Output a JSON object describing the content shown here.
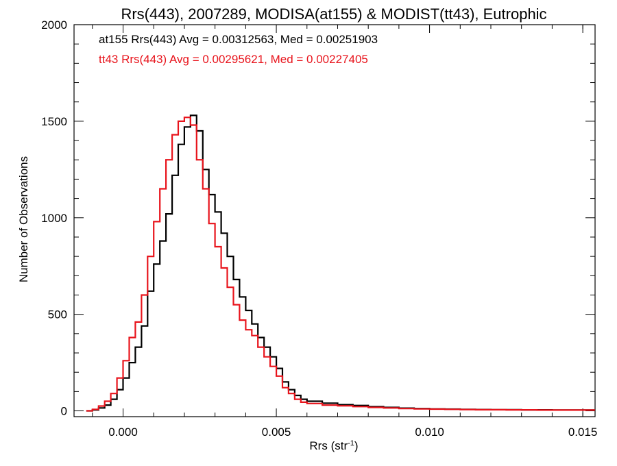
{
  "chart_data": {
    "type": "line",
    "title": "Rrs(443), 2007289, MODISA(at155) & MODIST(tt43), Eutrophic",
    "xlabel_main": "Rrs (str",
    "xlabel_sup": "-1",
    "xlabel_close": ")",
    "ylabel": "Number of Observations",
    "xlim": [
      -0.0016,
      0.0154
    ],
    "ylim": [
      -30,
      2000
    ],
    "x_ticks": [
      {
        "value": 0.0,
        "label": "0.000"
      },
      {
        "value": 0.005,
        "label": "0.005"
      },
      {
        "value": 0.01,
        "label": "0.010"
      },
      {
        "value": 0.015,
        "label": "0.015"
      }
    ],
    "y_ticks": [
      {
        "value": 0,
        "label": "0"
      },
      {
        "value": 500,
        "label": "500"
      },
      {
        "value": 1000,
        "label": "1000"
      },
      {
        "value": 1500,
        "label": "1500"
      },
      {
        "value": 2000,
        "label": "2000"
      }
    ],
    "grid": false,
    "legend_placement": "top-left",
    "annotations": [
      {
        "text": "at155 Rrs(443) Avg = 0.00312563, Med = 0.00251903",
        "color": "#000000"
      },
      {
        "text": "tt43 Rrs(443) Avg = 0.00295621, Med = 0.00227405",
        "color": "#e8141c"
      }
    ],
    "series": [
      {
        "color": "#000000",
        "x": [
          -0.0012,
          -0.001,
          -0.0008,
          -0.0006,
          -0.0004,
          -0.0002,
          0.0,
          0.0002,
          0.0004,
          0.0006,
          0.0008,
          0.001,
          0.0012,
          0.0014,
          0.0016,
          0.0018,
          0.002,
          0.0022,
          0.0024,
          0.0026,
          0.0028,
          0.003,
          0.0032,
          0.0034,
          0.0036,
          0.0038,
          0.004,
          0.0042,
          0.0044,
          0.0046,
          0.0048,
          0.005,
          0.0052,
          0.0054,
          0.0056,
          0.0058,
          0.006,
          0.0065,
          0.007,
          0.0075,
          0.008,
          0.0085,
          0.009,
          0.0095,
          0.01,
          0.0105,
          0.011,
          0.0115,
          0.012,
          0.0125,
          0.013,
          0.0135,
          0.014,
          0.0145,
          0.015,
          0.0154
        ],
        "y": [
          0,
          5,
          15,
          30,
          60,
          110,
          170,
          250,
          330,
          440,
          620,
          760,
          880,
          1020,
          1220,
          1380,
          1470,
          1530,
          1450,
          1250,
          1120,
          1030,
          920,
          800,
          680,
          590,
          520,
          450,
          380,
          330,
          280,
          220,
          150,
          110,
          80,
          60,
          50,
          40,
          32,
          28,
          22,
          18,
          14,
          12,
          10,
          9,
          8,
          7,
          6,
          6,
          5,
          5,
          4,
          4,
          4,
          4
        ]
      },
      {
        "color": "#e8141c",
        "x": [
          -0.0012,
          -0.001,
          -0.0008,
          -0.0006,
          -0.0004,
          -0.0002,
          0.0,
          0.0002,
          0.0004,
          0.0006,
          0.0008,
          0.001,
          0.0012,
          0.0014,
          0.0016,
          0.0018,
          0.002,
          0.0022,
          0.0024,
          0.0026,
          0.0028,
          0.003,
          0.0032,
          0.0034,
          0.0036,
          0.0038,
          0.004,
          0.0042,
          0.0044,
          0.0046,
          0.0048,
          0.005,
          0.0052,
          0.0054,
          0.0056,
          0.0058,
          0.006,
          0.0065,
          0.007,
          0.0075,
          0.008,
          0.0085,
          0.009,
          0.0095,
          0.01,
          0.0105,
          0.011,
          0.0115,
          0.012,
          0.0125,
          0.013,
          0.0135,
          0.014,
          0.0145,
          0.015,
          0.0154
        ],
        "y": [
          0,
          8,
          25,
          50,
          90,
          170,
          260,
          380,
          460,
          600,
          800,
          980,
          1150,
          1300,
          1430,
          1500,
          1520,
          1480,
          1300,
          1150,
          970,
          850,
          740,
          640,
          550,
          470,
          420,
          390,
          330,
          280,
          230,
          180,
          120,
          90,
          60,
          45,
          38,
          30,
          26,
          22,
          18,
          15,
          12,
          10,
          9,
          8,
          7,
          6,
          6,
          5,
          5,
          4,
          4,
          4,
          4,
          4
        ]
      }
    ]
  }
}
